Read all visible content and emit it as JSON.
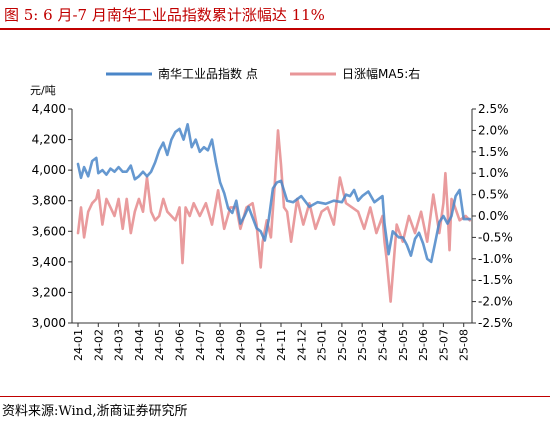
{
  "title": "图 5:    6 月-7 月南华工业品指数累计涨幅达 11%",
  "source": "资料来源:Wind,浙商证券研究所",
  "chart_data": {
    "type": "line",
    "y_unit": "元/吨",
    "x_ticks": [
      "24-01",
      "24-02",
      "24-03",
      "24-04",
      "24-05",
      "24-06",
      "24-07",
      "24-08",
      "24-09",
      "24-10",
      "24-11",
      "24-12",
      "25-01",
      "25-02",
      "25-03",
      "25-04",
      "25-05",
      "25-06",
      "25-07",
      "25-08"
    ],
    "y_left": {
      "min": 3000,
      "max": 4400,
      "step": 200,
      "ticks": [
        "3,000",
        "3,200",
        "3,400",
        "3,600",
        "3,800",
        "4,000",
        "4,200",
        "4,400"
      ]
    },
    "y_right": {
      "min": -2.5,
      "max": 2.5,
      "step": 0.5,
      "ticks": [
        "-2.5%",
        "-2.0%",
        "-1.5%",
        "-1.0%",
        "-0.5%",
        "0.0%",
        "0.5%",
        "1.0%",
        "1.5%",
        "2.0%",
        "2.5%"
      ]
    },
    "series": [
      {
        "name": "南华工业品指数 点",
        "axis": "left",
        "color": "#4a86c8",
        "x": [
          0,
          0.15,
          0.3,
          0.5,
          0.7,
          0.9,
          1.0,
          1.2,
          1.4,
          1.6,
          1.8,
          2.0,
          2.2,
          2.4,
          2.6,
          2.8,
          3.0,
          3.2,
          3.4,
          3.6,
          3.8,
          4.0,
          4.2,
          4.4,
          4.6,
          4.8,
          5.0,
          5.2,
          5.4,
          5.6,
          5.8,
          6.0,
          6.2,
          6.4,
          6.6,
          6.8,
          7.0,
          7.2,
          7.4,
          7.6,
          7.8,
          8.0,
          8.2,
          8.4,
          8.6,
          8.8,
          9.0,
          9.2,
          9.4,
          9.6,
          9.8,
          10.0,
          10.3,
          10.6,
          11.0,
          11.4,
          11.8,
          12.2,
          12.6,
          13.0,
          13.2,
          13.4,
          13.6,
          13.8,
          14.0,
          14.3,
          14.6,
          15.0,
          15.1,
          15.3,
          15.5,
          15.8,
          16.0,
          16.2,
          16.4,
          16.6,
          16.8,
          17.0,
          17.2,
          17.4,
          17.6,
          17.8,
          18.0,
          18.2,
          18.4,
          18.6,
          18.8,
          19.0,
          19.3
        ],
        "y": [
          4040,
          3950,
          4020,
          3960,
          4060,
          4080,
          3980,
          4000,
          3970,
          4010,
          3990,
          4020,
          3990,
          3990,
          4030,
          3940,
          3960,
          3990,
          3960,
          3990,
          4050,
          4130,
          4180,
          4100,
          4200,
          4250,
          4270,
          4200,
          4300,
          4150,
          4200,
          4120,
          4150,
          4130,
          4200,
          4050,
          3920,
          3850,
          3750,
          3720,
          3800,
          3650,
          3700,
          3760,
          3690,
          3620,
          3600,
          3540,
          3680,
          3880,
          3920,
          3930,
          3800,
          3790,
          3830,
          3760,
          3790,
          3780,
          3800,
          3790,
          3840,
          3830,
          3870,
          3800,
          3830,
          3860,
          3790,
          3830,
          3650,
          3450,
          3600,
          3560,
          3560,
          3510,
          3440,
          3550,
          3590,
          3520,
          3420,
          3400,
          3530,
          3660,
          3700,
          3650,
          3700,
          3830,
          3870,
          3680,
          3680
        ]
      },
      {
        "name": "日涨幅MA5:右",
        "axis": "right",
        "color": "#e89698",
        "x": [
          0,
          0.15,
          0.3,
          0.5,
          0.7,
          0.9,
          1.0,
          1.2,
          1.4,
          1.6,
          1.8,
          2.0,
          2.2,
          2.4,
          2.6,
          2.8,
          3.0,
          3.2,
          3.4,
          3.6,
          3.8,
          4.0,
          4.2,
          4.4,
          4.6,
          4.8,
          5.0,
          5.15,
          5.3,
          5.5,
          5.7,
          6.0,
          6.3,
          6.6,
          6.9,
          7.2,
          7.5,
          7.8,
          8.0,
          8.3,
          8.6,
          8.8,
          9.0,
          9.1,
          9.3,
          9.5,
          9.7,
          9.85,
          10.0,
          10.15,
          10.3,
          10.5,
          10.8,
          11.1,
          11.4,
          11.7,
          12.0,
          12.3,
          12.6,
          12.9,
          13.2,
          13.5,
          13.8,
          14.1,
          14.4,
          14.7,
          15.0,
          15.1,
          15.2,
          15.4,
          15.7,
          16.0,
          16.3,
          16.6,
          16.9,
          17.2,
          17.5,
          17.8,
          18.0,
          18.1,
          18.2,
          18.3,
          18.4,
          18.5,
          18.8,
          19.1,
          19.3
        ],
        "y": [
          -0.4,
          0.2,
          -0.5,
          0.1,
          0.3,
          0.4,
          0.6,
          -0.2,
          0.4,
          0.2,
          0.0,
          0.4,
          -0.3,
          0.4,
          -0.4,
          0.1,
          0.4,
          0.1,
          0.9,
          0.1,
          -0.1,
          0.0,
          0.4,
          0.1,
          0.0,
          -0.1,
          0.2,
          -1.1,
          0.2,
          0.0,
          0.3,
          0.0,
          0.3,
          -0.2,
          0.6,
          -0.3,
          0.2,
          0.2,
          -0.3,
          0.2,
          0.3,
          -0.2,
          -1.2,
          -0.6,
          -0.1,
          -0.5,
          0.8,
          2.0,
          1.2,
          0.2,
          0.1,
          -0.6,
          0.4,
          -0.2,
          0.3,
          -0.3,
          0.1,
          0.2,
          -0.2,
          0.9,
          0.3,
          0.2,
          0.1,
          -0.3,
          0.2,
          -0.4,
          0.0,
          -0.6,
          -1.0,
          -2.0,
          -0.2,
          -0.6,
          0.0,
          -0.4,
          0.1,
          -0.6,
          0.5,
          -0.4,
          0.3,
          1.0,
          0.2,
          -0.8,
          0.4,
          0.3,
          -0.1,
          0.0,
          -0.1
        ]
      }
    ]
  }
}
